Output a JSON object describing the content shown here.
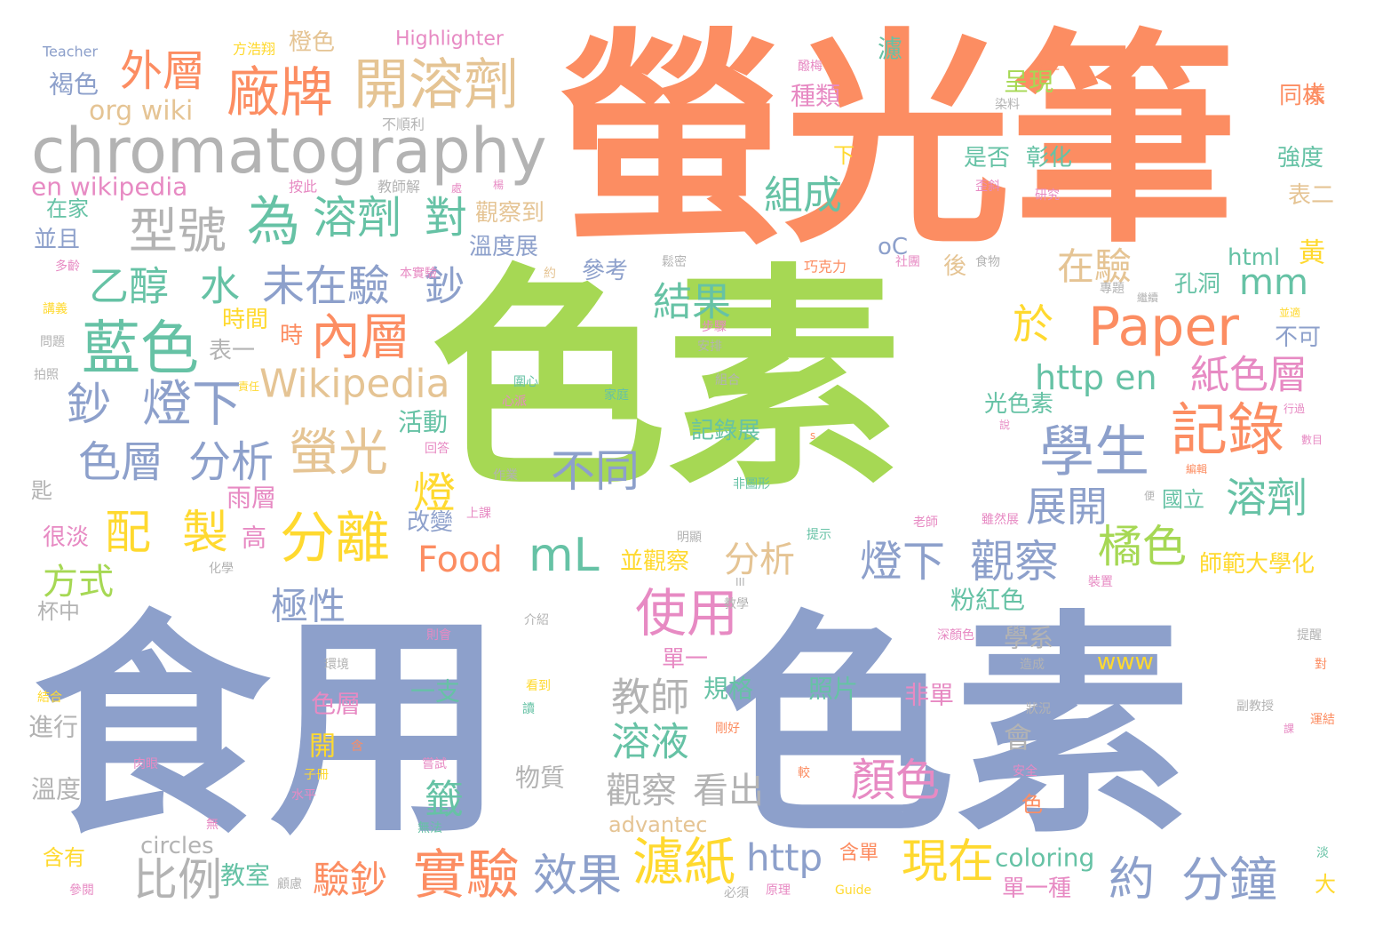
{
  "palette": {
    "orange": "#fc8d62",
    "green": "#a6d854",
    "blue": "#8da0cb",
    "gray": "#b3b3b3",
    "tan": "#e5c494",
    "yellow": "#ffd92f",
    "teal": "#66c2a5",
    "pink": "#e78ac3"
  },
  "words": {
    "w001": "螢光筆",
    "w002": "色素",
    "w003": "食用",
    "w004": "色素",
    "w005": "chromatography",
    "w006": "開溶劑",
    "w007": "廠牌",
    "w008": "外層",
    "w009": "型號",
    "w010": "為",
    "w011": "溶劑",
    "w012": "對",
    "w013": "藍色",
    "w014": "乙醇",
    "w015": "水",
    "w016": "未在驗",
    "w017": "鈔",
    "w018": "鈔",
    "w019": "燈下",
    "w020": "色層",
    "w021": "分析",
    "w022": "內層",
    "w023": "螢光",
    "w024": "Wikipedia",
    "w025": "Paper",
    "w026": "學生",
    "w027": "記錄",
    "w028": "分離",
    "w029": "配",
    "w030": "製",
    "w031": "mL",
    "w032": "使用",
    "w033": "不同",
    "w034": "燈",
    "w035": "實驗",
    "w036": "濾紙",
    "w037": "效果",
    "w038": "比例",
    "w039": "驗鈔",
    "w040": "Food",
    "w041": "現在",
    "w042": "約",
    "w043": "分鐘",
    "w044": "http",
    "w045": "溶劑",
    "w046": "觀察",
    "w047": "燈下",
    "w048": "橘色",
    "w049": "紙色層",
    "w050": "http en",
    "w051": "展開",
    "w052": "於",
    "w053": "在驗",
    "w054": "mm",
    "w055": "結果",
    "w056": "組成",
    "w057": "極性",
    "w058": "分析",
    "w059": "教師",
    "w060": "溶液",
    "w061": "顏色",
    "w062": "觀察",
    "w063": "看出",
    "w064": "籤",
    "w065": "方式",
    "w066": "org wiki",
    "w067": "en wikipedia",
    "w068": "Highlighter",
    "w069": "Teacher",
    "w070": "方浩翔",
    "w071": "橙色",
    "w072": "褐色",
    "w073": "在家",
    "w074": "並且",
    "w075": "不順利",
    "w076": "按此",
    "w077": "教師解",
    "w078": "濾",
    "w079": "呈現",
    "w080": "種類",
    "w081": "太",
    "w082": "同樣",
    "w083": "強度",
    "w084": "表二",
    "w085": "是否",
    "w086": "彰化",
    "w087": "下",
    "w088": "觀察到",
    "w089": "溫度展",
    "w090": "oC",
    "w091": "後",
    "w092": "html",
    "w093": "黃",
    "w094": "孔洞",
    "w095": "不可",
    "w096": "參考",
    "w097": "時間",
    "w098": "時",
    "w099": "表一",
    "w100": "活動",
    "w101": "改變",
    "w102": "記錄展",
    "w103": "光色素",
    "w104": "國立",
    "w105": "師範大學化",
    "w106": "雨層",
    "w107": "高",
    "w108": "很淡",
    "w109": "並觀察",
    "w110": "粉紅色",
    "w111": "學系",
    "w112": "單一",
    "w113": "規格",
    "w114": "色層",
    "w115": "一支",
    "w116": "照片",
    "w117": "非單",
    "w118": "www",
    "w119": "進行",
    "w120": "開",
    "w121": "會",
    "w122": "溫度",
    "w123": "物質",
    "w124": "circles",
    "w125": "advantec",
    "w126": "含有",
    "w127": "教室",
    "w128": "含單",
    "w129": "coloring",
    "w130": "單一種",
    "w131": "大",
    "w132": "杯中",
    "w133": "匙",
    "w134": "色",
    "w135": "多齡",
    "w136": "講義",
    "w137": "問題",
    "w138": "拍照",
    "w139": "本實驗",
    "w140": "約",
    "w141": "巧克力",
    "w142": "社團",
    "w143": "食物",
    "w144": "專題",
    "w145": "步驟",
    "w146": "安排",
    "w147": "圍心",
    "w148": "心派",
    "w149": "家庭",
    "w150": "組合",
    "w151": "責任",
    "w152": "回答",
    "w153": "作業",
    "w154": "非圖形",
    "w155": "上課",
    "w156": "提示",
    "w157": "老師",
    "w158": "明顯",
    "w159": "雖然展",
    "w160": "化學",
    "w161": "教學",
    "w162": "則會",
    "w163": "介紹",
    "w164": "深顏色",
    "w165": "環境",
    "w166": "結合",
    "w167": "看到",
    "w168": "讀",
    "w169": "造成",
    "w170": "狀況",
    "w171": "副教授",
    "w172": "提醒",
    "w173": "對",
    "w174": "運結",
    "w175": "剛好",
    "w176": "含",
    "w177": "肉眼",
    "w178": "子冊",
    "w179": "嘗試",
    "w180": "水平",
    "w181": "無法",
    "w182": "無",
    "w183": "參閱",
    "w184": "顧慮",
    "w185": "原理",
    "w186": "必須",
    "w187": "Guide",
    "w188": "較",
    "w189": "安全",
    "w190": "淡",
    "w191": "之二",
    "w192": "醱梅",
    "w193": "染料",
    "w194": "研究",
    "w195": "歪斜",
    "w196": "楊",
    "w197": "處",
    "w198": "並適",
    "w199": "繼續",
    "w200": "行過",
    "w201": "數目",
    "w202": "編輯",
    "w203": "便",
    "w204": "裝置",
    "w205": "說",
    "w206": "課",
    "w207": "s",
    "w208": "III",
    "w209": "鬆密"
  }
}
